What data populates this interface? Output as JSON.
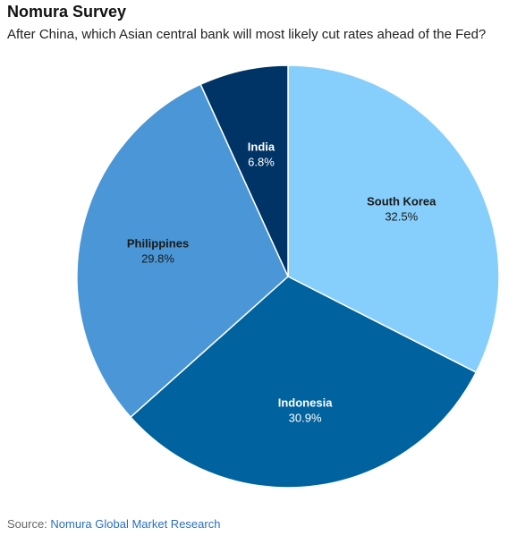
{
  "header": {
    "title": "Nomura Survey",
    "subtitle": "After China, which Asian central bank will most likely cut rates ahead of the Fed?"
  },
  "chart_data": {
    "type": "pie",
    "title": "Nomura Survey",
    "subtitle": "After China, which Asian central bank will most likely cut rates ahead of the Fed?",
    "slices": [
      {
        "label": "South Korea",
        "value": 32.5,
        "display": "32.5%",
        "color": "#86cefb",
        "text_color": "#1a1a1a"
      },
      {
        "label": "Indonesia",
        "value": 30.9,
        "display": "30.9%",
        "color": "#00629e",
        "text_color": "#ffffff"
      },
      {
        "label": "Philippines",
        "value": 29.8,
        "display": "29.8%",
        "color": "#4a96d6",
        "text_color": "#1a1a1a"
      },
      {
        "label": "India",
        "value": 6.8,
        "display": "6.8%",
        "color": "#003466",
        "text_color": "#ffffff"
      }
    ],
    "start_angle": "12 o'clock",
    "direction": "clockwise",
    "legend": "none"
  },
  "footer": {
    "source_label": "Source: ",
    "source_text": "Nomura Global Market Research"
  }
}
